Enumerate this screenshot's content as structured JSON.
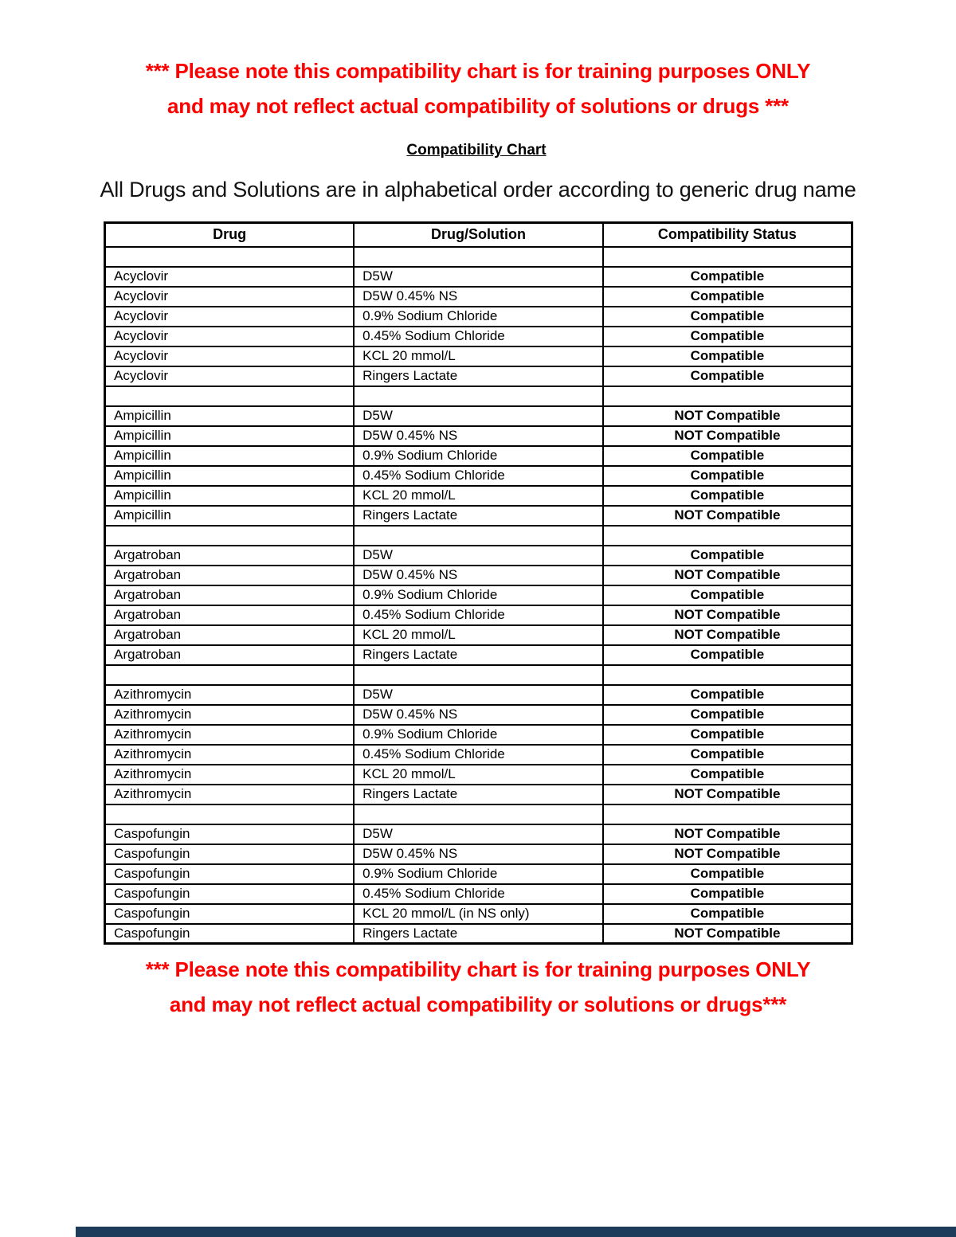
{
  "warnings": {
    "top_line1": "*** Please note this compatibility chart is for training purposes ONLY",
    "top_line2": "and may not reflect actual compatibility of solutions or drugs ***",
    "bottom_line1": "*** Please note this compatibility chart is for training purposes ONLY",
    "bottom_line2": "and may not reflect actual compatibility or solutions or drugs***"
  },
  "header": {
    "title": "Compatibility Chart",
    "subtitle": "All Drugs and Solutions are in alphabetical order according to generic drug name"
  },
  "table": {
    "headers": [
      "Drug",
      "Drug/Solution",
      "Compatibility Status"
    ],
    "groups": [
      {
        "drug": "Acyclovir",
        "rows": [
          {
            "solution": "D5W",
            "status": "Compatible"
          },
          {
            "solution": "D5W 0.45% NS",
            "status": "Compatible"
          },
          {
            "solution": "0.9% Sodium Chloride",
            "status": "Compatible"
          },
          {
            "solution": "0.45% Sodium Chloride",
            "status": "Compatible"
          },
          {
            "solution": "KCL 20 mmol/L",
            "status": "Compatible"
          },
          {
            "solution": "Ringers Lactate",
            "status": "Compatible"
          }
        ]
      },
      {
        "drug": "Ampicillin",
        "rows": [
          {
            "solution": "D5W",
            "status": "NOT Compatible"
          },
          {
            "solution": "D5W 0.45% NS",
            "status": "NOT Compatible"
          },
          {
            "solution": "0.9% Sodium Chloride",
            "status": "Compatible"
          },
          {
            "solution": "0.45% Sodium Chloride",
            "status": "Compatible"
          },
          {
            "solution": "KCL 20 mmol/L",
            "status": "Compatible"
          },
          {
            "solution": "Ringers Lactate",
            "status": "NOT Compatible"
          }
        ]
      },
      {
        "drug": "Argatroban",
        "rows": [
          {
            "solution": "D5W",
            "status": "Compatible"
          },
          {
            "solution": "D5W 0.45% NS",
            "status": "NOT Compatible"
          },
          {
            "solution": "0.9% Sodium Chloride",
            "status": "Compatible"
          },
          {
            "solution": "0.45% Sodium Chloride",
            "status": "NOT Compatible"
          },
          {
            "solution": "KCL 20 mmol/L",
            "status": "NOT Compatible"
          },
          {
            "solution": "Ringers Lactate",
            "status": "Compatible"
          }
        ]
      },
      {
        "drug": "Azithromycin",
        "rows": [
          {
            "solution": "D5W",
            "status": "Compatible"
          },
          {
            "solution": "D5W 0.45% NS",
            "status": "Compatible"
          },
          {
            "solution": "0.9% Sodium Chloride",
            "status": "Compatible"
          },
          {
            "solution": "0.45% Sodium Chloride",
            "status": "Compatible"
          },
          {
            "solution": "KCL 20 mmol/L",
            "status": "Compatible"
          },
          {
            "solution": "Ringers Lactate",
            "status": "NOT Compatible"
          }
        ]
      },
      {
        "drug": "Caspofungin",
        "rows": [
          {
            "solution": "D5W",
            "status": "NOT Compatible"
          },
          {
            "solution": "D5W 0.45% NS",
            "status": "NOT Compatible"
          },
          {
            "solution": "0.9% Sodium Chloride",
            "status": "Compatible"
          },
          {
            "solution": "0.45% Sodium Chloride",
            "status": "Compatible"
          },
          {
            "solution": "KCL 20 mmol/L (in NS only)",
            "status": "Compatible"
          },
          {
            "solution": "Ringers Lactate",
            "status": "NOT Compatible"
          }
        ]
      }
    ]
  },
  "colors": {
    "warning_red": "#fe0000",
    "border_black": "#000000",
    "bottom_bar_navy": "#1d3b5a"
  }
}
